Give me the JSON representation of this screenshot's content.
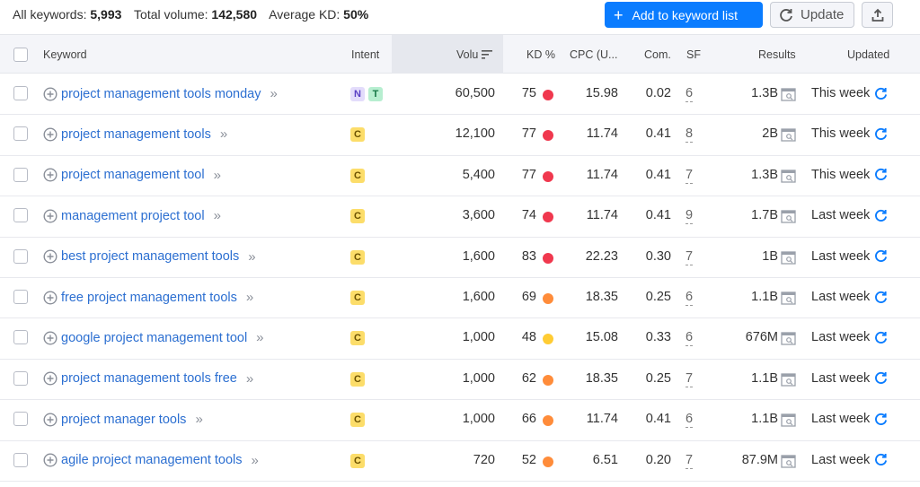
{
  "summary": {
    "all_keywords_label": "All keywords:",
    "all_keywords_value": "5,993",
    "total_volume_label": "Total volume:",
    "total_volume_value": "142,580",
    "avg_kd_label": "Average KD:",
    "avg_kd_value": "50%"
  },
  "toolbar": {
    "add_label": "Add to keyword list",
    "update_label": "Update",
    "export_icon": "export-icon"
  },
  "columns": {
    "keyword": "Keyword",
    "intent": "Intent",
    "volume": "Volu",
    "kd": "KD %",
    "cpc": "CPC (U...",
    "com": "Com.",
    "sf": "SF",
    "results": "Results",
    "updated": "Updated"
  },
  "colors": {
    "accent": "#0a7cff",
    "link": "#2c6fd1",
    "kd_red": "#f0384e",
    "kd_orange": "#ff8c3a",
    "kd_yellow": "#ffcc33"
  },
  "rows": [
    {
      "keyword": "project management tools monday",
      "intent": [
        "N",
        "T"
      ],
      "volume": "60,500",
      "kd": "75",
      "kd_color": "#f0384e",
      "cpc": "15.98",
      "com": "0.02",
      "sf": "6",
      "results": "1.3B",
      "updated": "This week"
    },
    {
      "keyword": "project management tools",
      "intent": [
        "C"
      ],
      "volume": "12,100",
      "kd": "77",
      "kd_color": "#f0384e",
      "cpc": "11.74",
      "com": "0.41",
      "sf": "8",
      "results": "2B",
      "updated": "This week"
    },
    {
      "keyword": "project management tool",
      "intent": [
        "C"
      ],
      "volume": "5,400",
      "kd": "77",
      "kd_color": "#f0384e",
      "cpc": "11.74",
      "com": "0.41",
      "sf": "7",
      "results": "1.3B",
      "updated": "This week"
    },
    {
      "keyword": "management project tool",
      "intent": [
        "C"
      ],
      "volume": "3,600",
      "kd": "74",
      "kd_color": "#f0384e",
      "cpc": "11.74",
      "com": "0.41",
      "sf": "9",
      "results": "1.7B",
      "updated": "Last week"
    },
    {
      "keyword": "best project management tools",
      "intent": [
        "C"
      ],
      "volume": "1,600",
      "kd": "83",
      "kd_color": "#f0384e",
      "cpc": "22.23",
      "com": "0.30",
      "sf": "7",
      "results": "1B",
      "updated": "Last week"
    },
    {
      "keyword": "free project management tools",
      "intent": [
        "C"
      ],
      "volume": "1,600",
      "kd": "69",
      "kd_color": "#ff8c3a",
      "cpc": "18.35",
      "com": "0.25",
      "sf": "6",
      "results": "1.1B",
      "updated": "Last week"
    },
    {
      "keyword": "google project management tool",
      "intent": [
        "C"
      ],
      "volume": "1,000",
      "kd": "48",
      "kd_color": "#ffcc33",
      "cpc": "15.08",
      "com": "0.33",
      "sf": "6",
      "results": "676M",
      "updated": "Last week"
    },
    {
      "keyword": "project management tools free",
      "intent": [
        "C"
      ],
      "volume": "1,000",
      "kd": "62",
      "kd_color": "#ff8c3a",
      "cpc": "18.35",
      "com": "0.25",
      "sf": "7",
      "results": "1.1B",
      "updated": "Last week"
    },
    {
      "keyword": "project manager tools",
      "intent": [
        "C"
      ],
      "volume": "1,000",
      "kd": "66",
      "kd_color": "#ff8c3a",
      "cpc": "11.74",
      "com": "0.41",
      "sf": "6",
      "results": "1.1B",
      "updated": "Last week"
    },
    {
      "keyword": "agile project management tools",
      "intent": [
        "C"
      ],
      "volume": "720",
      "kd": "52",
      "kd_color": "#ff8c3a",
      "cpc": "6.51",
      "com": "0.20",
      "sf": "7",
      "results": "87.9M",
      "updated": "Last week"
    }
  ]
}
